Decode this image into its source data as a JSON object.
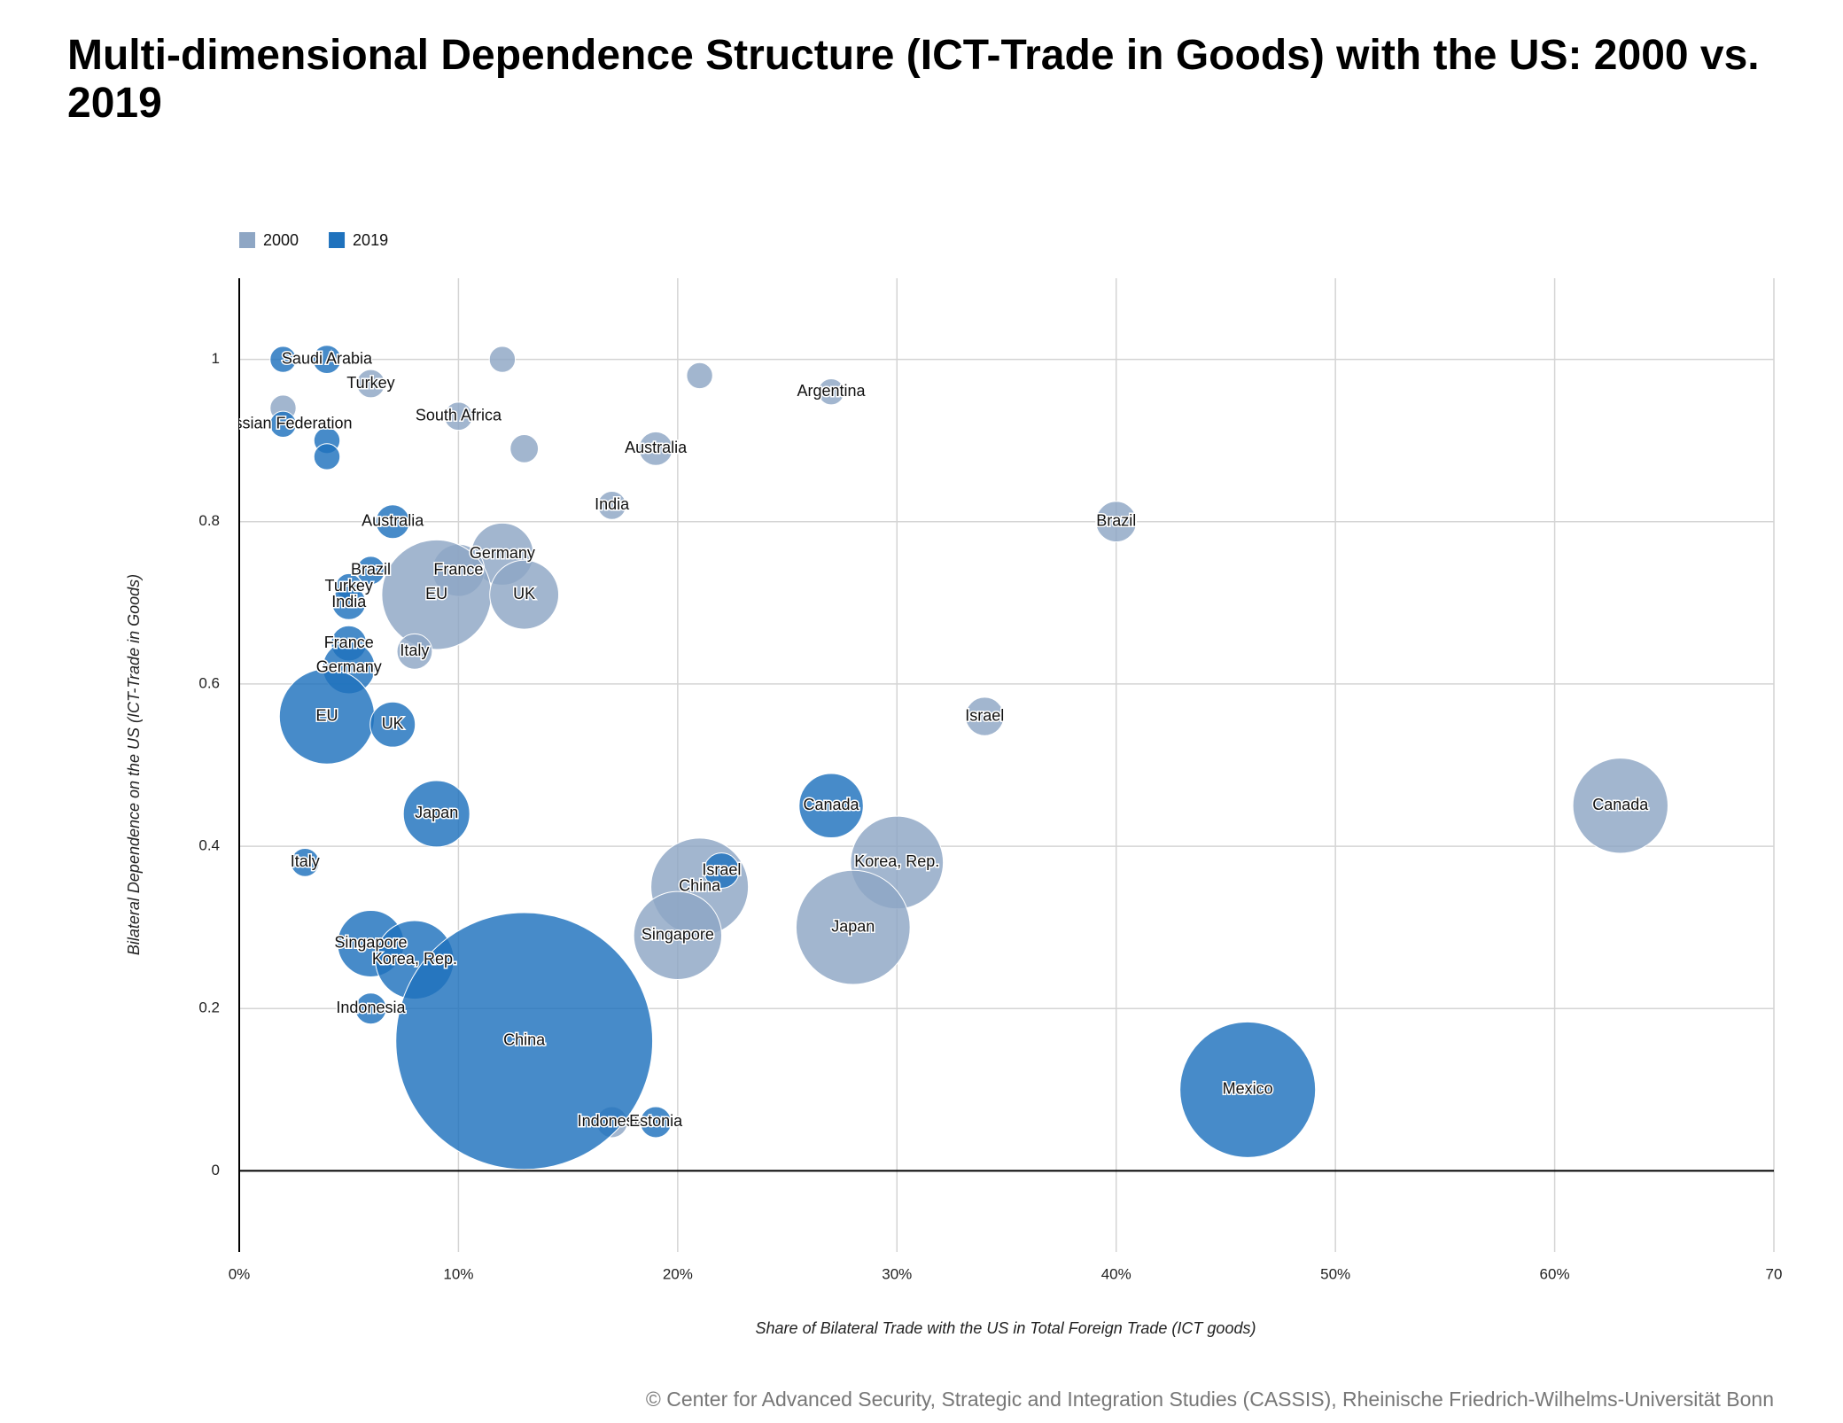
{
  "chart_data": {
    "type": "scatter",
    "title": "Multi-dimensional Dependence Structure (ICT-Trade in Goods) with the US: 2000 vs. 2019",
    "x_label": "Share of Bilateral Trade with the US in Total Foreign Trade (ICT goods)",
    "y_label": "Bilateral Dependence on the US (ICT-Trade in Goods)",
    "source": "© Center for Advanced Security, Strategic and Integration Studies (CASSIS), Rheinische Friedrich-Wilhelms-Universität Bonn",
    "xlim": [
      0,
      70
    ],
    "ylim": [
      -0.1,
      1.1
    ],
    "xticks": [
      {
        "value": 0,
        "label": "0%"
      },
      {
        "value": 10,
        "label": "10%"
      },
      {
        "value": 20,
        "label": "20%"
      },
      {
        "value": 30,
        "label": "30%"
      },
      {
        "value": 40,
        "label": "40%"
      },
      {
        "value": 50,
        "label": "50%"
      },
      {
        "value": 60,
        "label": "60%"
      },
      70
    ],
    "yticks": [
      0,
      0.2,
      0.4,
      0.6,
      0.8,
      1
    ],
    "grid": true,
    "series": [
      {
        "name": "2000",
        "color": "#8ea6c4",
        "x": [
          2,
          6,
          10,
          12,
          13,
          21,
          27,
          19,
          17,
          40,
          12,
          10,
          9,
          13,
          8,
          34,
          63,
          30,
          21,
          28,
          20,
          17
        ],
        "values": [
          0.94,
          0.97,
          0.93,
          1.0,
          0.89,
          0.98,
          0.96,
          0.89,
          0.82,
          0.8,
          0.76,
          0.74,
          0.71,
          0.71,
          0.64,
          0.56,
          0.45,
          0.38,
          0.35,
          0.3,
          0.29,
          0.06
        ],
        "sizes": [
          12,
          14,
          14,
          12,
          14,
          12,
          12,
          20,
          14,
          29,
          68,
          48,
          212,
          84,
          22,
          26,
          160,
          152,
          168,
          230,
          137,
          17
        ],
        "labels": [
          null,
          "Turkey",
          "South Africa",
          null,
          null,
          null,
          "Argentina",
          "Australia",
          "India",
          "Brazil",
          "Germany",
          "France",
          "EU",
          "UK",
          "Italy",
          "Israel",
          "Canada",
          "Korea, Rep.",
          "China",
          "Japan",
          "Singapore",
          "Indonesia"
        ]
      },
      {
        "name": "2019",
        "color": "#1f72bd",
        "x": [
          2,
          4,
          2,
          4,
          4,
          7,
          6,
          5,
          5,
          5,
          5,
          4,
          7,
          9,
          3,
          27,
          22,
          6,
          8,
          6,
          13,
          46,
          19
        ],
        "values": [
          1.0,
          1.0,
          0.92,
          0.9,
          0.88,
          0.8,
          0.74,
          0.72,
          0.7,
          0.65,
          0.62,
          0.56,
          0.55,
          0.44,
          0.38,
          0.45,
          0.37,
          0.28,
          0.26,
          0.2,
          0.16,
          0.1,
          0.06
        ],
        "sizes": [
          12,
          14,
          12,
          12,
          12,
          20,
          14,
          12,
          20,
          22,
          48,
          160,
          36,
          78,
          14,
          73,
          22,
          78,
          109,
          17,
          1166,
          325,
          17
        ],
        "labels": [
          null,
          "Saudi Arabia",
          "Russian Federation",
          null,
          null,
          "Australia",
          "Brazil",
          "Turkey",
          "India",
          "France",
          "Germany",
          "EU",
          "UK",
          "Japan",
          "Italy",
          "Canada",
          "Israel",
          "Singapore",
          "Korea, Rep.",
          "Indonesia",
          "China",
          "Mexico",
          "Estonia"
        ]
      }
    ]
  }
}
